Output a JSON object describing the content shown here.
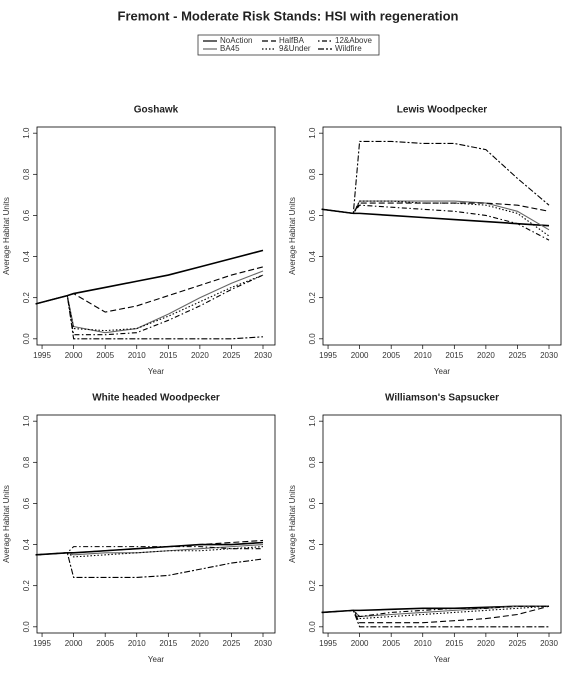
{
  "title": "Fremont  - Moderate Risk Stands: HSI with regeneration",
  "chart_data": [
    {
      "type": "line",
      "title": "Goshawk",
      "xlabel": "Year",
      "ylabel": "Average Habitat Units",
      "x": [
        1994,
        1999,
        2000,
        2005,
        2010,
        2015,
        2020,
        2025,
        2030
      ],
      "xlim": [
        1994.2,
        2031.9
      ],
      "xticks": [
        1995,
        2000,
        2005,
        2010,
        2015,
        2020,
        2025,
        2030
      ],
      "ylim": [
        -0.03,
        1.03
      ],
      "yticks": [
        {
          "value": 0,
          "label": "0.0"
        },
        0.2,
        0.4,
        0.6,
        0.8,
        {
          "value": 1,
          "label": "1.0"
        }
      ],
      "series": [
        {
          "name": "NoAction",
          "color": "#000000",
          "linestyle": "solid",
          "values": [
            0.17,
            0.21,
            0.22,
            0.25,
            0.28,
            0.31,
            0.35,
            0.39,
            0.43
          ]
        },
        {
          "name": "BA45",
          "color": "#666666",
          "linestyle": "solid",
          "values": [
            0.17,
            0.21,
            0.06,
            0.03,
            0.05,
            0.12,
            0.2,
            0.27,
            0.33
          ]
        },
        {
          "name": "HalfBA",
          "color": "#000000",
          "linestyle": "dashed",
          "values": [
            0.17,
            0.21,
            0.22,
            0.13,
            0.16,
            0.21,
            0.26,
            0.31,
            0.35
          ]
        },
        {
          "name": "9&Under",
          "color": "#000000",
          "linestyle": "dotted",
          "values": [
            0.17,
            0.21,
            0.05,
            0.04,
            0.05,
            0.11,
            0.18,
            0.25,
            0.31
          ]
        },
        {
          "name": "12&Above",
          "color": "#000000",
          "linestyle": "dotdash",
          "values": [
            0.17,
            0.21,
            0.02,
            0.02,
            0.03,
            0.09,
            0.16,
            0.24,
            0.31
          ]
        },
        {
          "name": "Wildfire",
          "color": "#000000",
          "linestyle": "twodash",
          "values": [
            0.17,
            0.21,
            0.0,
            0.0,
            0.0,
            0.0,
            0.0,
            0.0,
            0.01
          ]
        }
      ]
    },
    {
      "type": "line",
      "title": "Lewis Woodpecker",
      "xlabel": "Year",
      "ylabel": "Average Habitat Units",
      "x": [
        1994,
        1999,
        2000,
        2005,
        2010,
        2015,
        2020,
        2025,
        2030
      ],
      "xlim": [
        1994.2,
        2031.9
      ],
      "xticks": [
        1995,
        2000,
        2005,
        2010,
        2015,
        2020,
        2025,
        2030
      ],
      "ylim": [
        -0.03,
        1.03
      ],
      "yticks": [
        {
          "value": 0,
          "label": "0.0"
        },
        0.2,
        0.4,
        0.6,
        0.8,
        {
          "value": 1,
          "label": "1.0"
        }
      ],
      "series": [
        {
          "name": "NoAction",
          "color": "#000000",
          "linestyle": "solid",
          "values": [
            0.63,
            0.61,
            0.61,
            0.6,
            0.59,
            0.58,
            0.57,
            0.56,
            0.55
          ]
        },
        {
          "name": "BA45",
          "color": "#666666",
          "linestyle": "solid",
          "values": [
            0.63,
            0.61,
            0.67,
            0.67,
            0.67,
            0.67,
            0.66,
            0.62,
            0.53
          ]
        },
        {
          "name": "HalfBA",
          "color": "#000000",
          "linestyle": "dashed",
          "values": [
            0.63,
            0.61,
            0.66,
            0.66,
            0.66,
            0.66,
            0.66,
            0.65,
            0.62
          ]
        },
        {
          "name": "9&Under",
          "color": "#000000",
          "linestyle": "dotted",
          "values": [
            0.63,
            0.61,
            0.67,
            0.67,
            0.66,
            0.66,
            0.65,
            0.61,
            0.5
          ]
        },
        {
          "name": "12&Above",
          "color": "#000000",
          "linestyle": "dotdash",
          "values": [
            0.63,
            0.61,
            0.65,
            0.64,
            0.63,
            0.62,
            0.6,
            0.56,
            0.48
          ]
        },
        {
          "name": "Wildfire",
          "color": "#000000",
          "linestyle": "twodash",
          "values": [
            0.63,
            0.61,
            0.96,
            0.96,
            0.95,
            0.95,
            0.92,
            0.78,
            0.65
          ]
        }
      ]
    },
    {
      "type": "line",
      "title": "White headed Woodpecker",
      "xlabel": "Year",
      "ylabel": "Average Habitat Units",
      "x": [
        1994,
        1999,
        2000,
        2005,
        2010,
        2015,
        2020,
        2025,
        2030
      ],
      "xlim": [
        1994.2,
        2031.9
      ],
      "xticks": [
        1995,
        2000,
        2005,
        2010,
        2015,
        2020,
        2025,
        2030
      ],
      "ylim": [
        -0.03,
        1.03
      ],
      "yticks": [
        {
          "value": 0,
          "label": "0.0"
        },
        0.2,
        0.4,
        0.6,
        0.8,
        {
          "value": 1,
          "label": "1.0"
        }
      ],
      "series": [
        {
          "name": "NoAction",
          "color": "#000000",
          "linestyle": "solid",
          "values": [
            0.35,
            0.36,
            0.36,
            0.37,
            0.38,
            0.39,
            0.4,
            0.4,
            0.41
          ]
        },
        {
          "name": "BA45",
          "color": "#666666",
          "linestyle": "solid",
          "values": [
            0.35,
            0.36,
            0.35,
            0.36,
            0.36,
            0.37,
            0.38,
            0.39,
            0.4
          ]
        },
        {
          "name": "HalfBA",
          "color": "#000000",
          "linestyle": "dashed",
          "values": [
            0.35,
            0.36,
            0.36,
            0.37,
            0.38,
            0.39,
            0.4,
            0.41,
            0.42
          ]
        },
        {
          "name": "9&Under",
          "color": "#000000",
          "linestyle": "dotted",
          "values": [
            0.35,
            0.36,
            0.34,
            0.35,
            0.36,
            0.37,
            0.37,
            0.38,
            0.39
          ]
        },
        {
          "name": "12&Above",
          "color": "#000000",
          "linestyle": "dotdash",
          "values": [
            0.35,
            0.36,
            0.39,
            0.39,
            0.39,
            0.39,
            0.39,
            0.38,
            0.38
          ]
        },
        {
          "name": "Wildfire",
          "color": "#000000",
          "linestyle": "twodash",
          "values": [
            0.35,
            0.36,
            0.24,
            0.24,
            0.24,
            0.25,
            0.28,
            0.31,
            0.33
          ]
        }
      ]
    },
    {
      "type": "line",
      "title": "Williamson's Sapsucker",
      "xlabel": "Year",
      "ylabel": "Average Habitat Units",
      "x": [
        1994,
        1999,
        2000,
        2005,
        2010,
        2015,
        2020,
        2025,
        2030
      ],
      "xlim": [
        1994.2,
        2031.9
      ],
      "xticks": [
        1995,
        2000,
        2005,
        2010,
        2015,
        2020,
        2025,
        2030
      ],
      "ylim": [
        -0.03,
        1.03
      ],
      "yticks": [
        {
          "value": 0,
          "label": "0.0"
        },
        0.2,
        0.4,
        0.6,
        0.8,
        {
          "value": 1,
          "label": "1.0"
        }
      ],
      "series": [
        {
          "name": "NoAction",
          "color": "#000000",
          "linestyle": "solid",
          "values": [
            0.07,
            0.08,
            0.08,
            0.085,
            0.09,
            0.09,
            0.095,
            0.1,
            0.1
          ]
        },
        {
          "name": "BA45",
          "color": "#666666",
          "linestyle": "solid",
          "values": [
            0.07,
            0.08,
            0.05,
            0.06,
            0.07,
            0.08,
            0.09,
            0.1,
            0.1
          ]
        },
        {
          "name": "HalfBA",
          "color": "#000000",
          "linestyle": "dashed",
          "values": [
            0.07,
            0.08,
            0.02,
            0.02,
            0.02,
            0.03,
            0.04,
            0.06,
            0.1
          ]
        },
        {
          "name": "9&Under",
          "color": "#000000",
          "linestyle": "dotted",
          "values": [
            0.07,
            0.08,
            0.04,
            0.05,
            0.06,
            0.07,
            0.08,
            0.09,
            0.1
          ]
        },
        {
          "name": "12&Above",
          "color": "#000000",
          "linestyle": "dotdash",
          "values": [
            0.07,
            0.08,
            0.05,
            0.07,
            0.08,
            0.09,
            0.09,
            0.1,
            0.1
          ]
        },
        {
          "name": "Wildfire",
          "color": "#000000",
          "linestyle": "twodash",
          "values": [
            0.07,
            0.08,
            0.0,
            0.0,
            0.0,
            0.0,
            0.0,
            0.0,
            0.0
          ]
        }
      ]
    }
  ]
}
